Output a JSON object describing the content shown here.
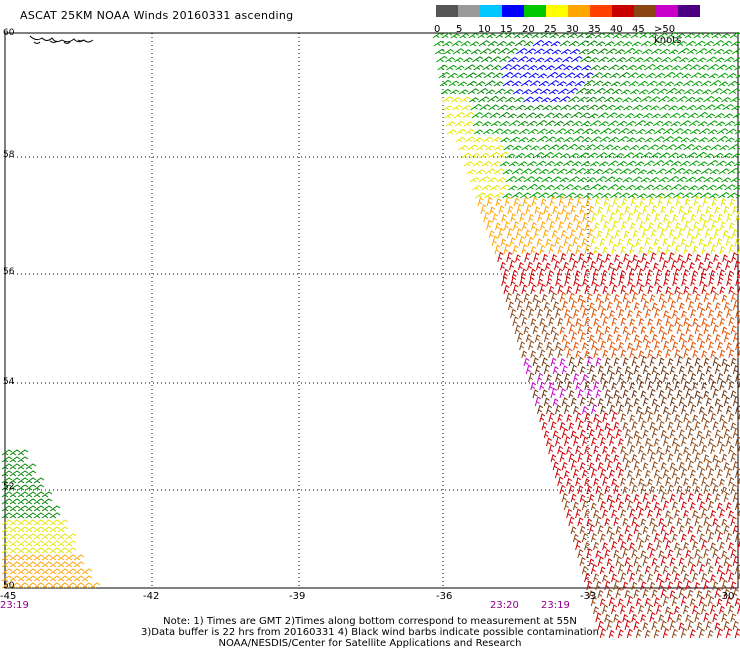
{
  "title": "ASCAT 25KM NOAA Winds 20160331 ascending",
  "scale": {
    "labels": [
      "0",
      "5",
      "10",
      "15",
      "20",
      "25",
      "30",
      "35",
      "40",
      "45",
      ">50 knots"
    ],
    "colors": [
      "#555555",
      "#9a9a9a",
      "#00c8ff",
      "#0000ff",
      "#00c800",
      "#ffff00",
      "#ffa500",
      "#ff4000",
      "#c80000",
      "#8b4513",
      "#c800c8",
      "#4b0082"
    ]
  },
  "lat_labels": [
    "60",
    "58",
    "56",
    "54",
    "52",
    "50"
  ],
  "lon_labels": [
    "-45",
    "-42",
    "-39",
    "-36",
    "-33",
    "-30"
  ],
  "time_labels": {
    "left": "23:19",
    "mid": "23:20",
    "right": "23:19"
  },
  "note": {
    "line1": "Note: 1) Times are GMT 2)Times along bottom correspond to measurement at 55N",
    "line2": "3)Data buffer is 22 hrs from 20160331 4) Black wind barbs indicate possible contamination",
    "line3": "NOAA/NESDIS/Center for Satellite Applications and Research"
  }
}
